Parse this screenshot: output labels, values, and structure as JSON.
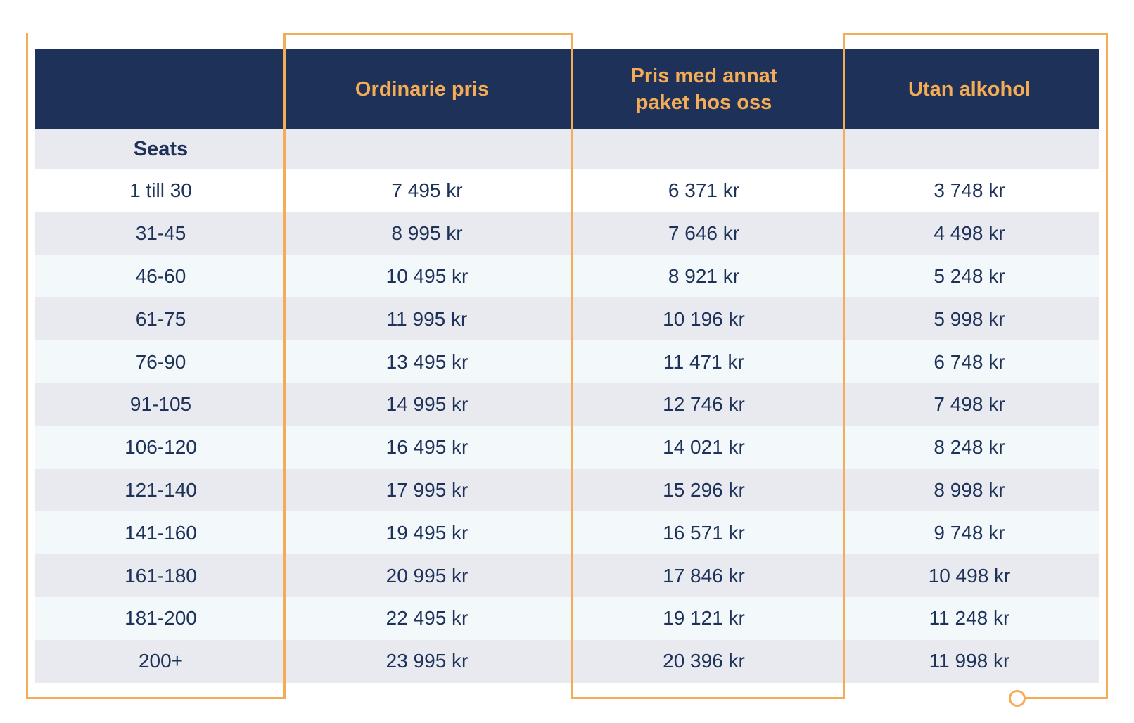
{
  "table": {
    "columns": [
      "",
      "Ordinarie pris",
      "Pris med annat paket hos oss",
      "Utan alkohol"
    ],
    "seats_label": "Seats",
    "rows": [
      [
        "1 till 30",
        "7 495 kr",
        "6 371 kr",
        "3 748 kr"
      ],
      [
        "31-45",
        "8 995 kr",
        "7 646 kr",
        "4 498 kr"
      ],
      [
        "46-60",
        "10 495 kr",
        "8 921 kr",
        "5 248 kr"
      ],
      [
        "61-75",
        "11 995 kr",
        "10 196 kr",
        "5 998 kr"
      ],
      [
        "76-90",
        "13 495 kr",
        "11 471 kr",
        "6 748 kr"
      ],
      [
        "91-105",
        "14 995 kr",
        "12 746 kr",
        "7 498 kr"
      ],
      [
        "106-120",
        "16 495 kr",
        "14 021 kr",
        "8 248 kr"
      ],
      [
        "121-140",
        "17 995 kr",
        "15 296 kr",
        "8 998 kr"
      ],
      [
        "141-160",
        "19 495 kr",
        "16 571 kr",
        "9 748 kr"
      ],
      [
        "161-180",
        "20 995 kr",
        "17 846 kr",
        "10 498 kr"
      ],
      [
        "181-200",
        "22 495 kr",
        "19 121 kr",
        "11 248 kr"
      ],
      [
        "200+",
        "23 995 kr",
        "20 396 kr",
        "11 998 kr"
      ]
    ]
  },
  "colors": {
    "header_bg": "#1d3159",
    "header_text": "#f5ac57",
    "body_text": "#1d3159",
    "row_grey": "#e8eaef",
    "row_mint": "#f3f9fa",
    "frame": "#f5ac57"
  }
}
